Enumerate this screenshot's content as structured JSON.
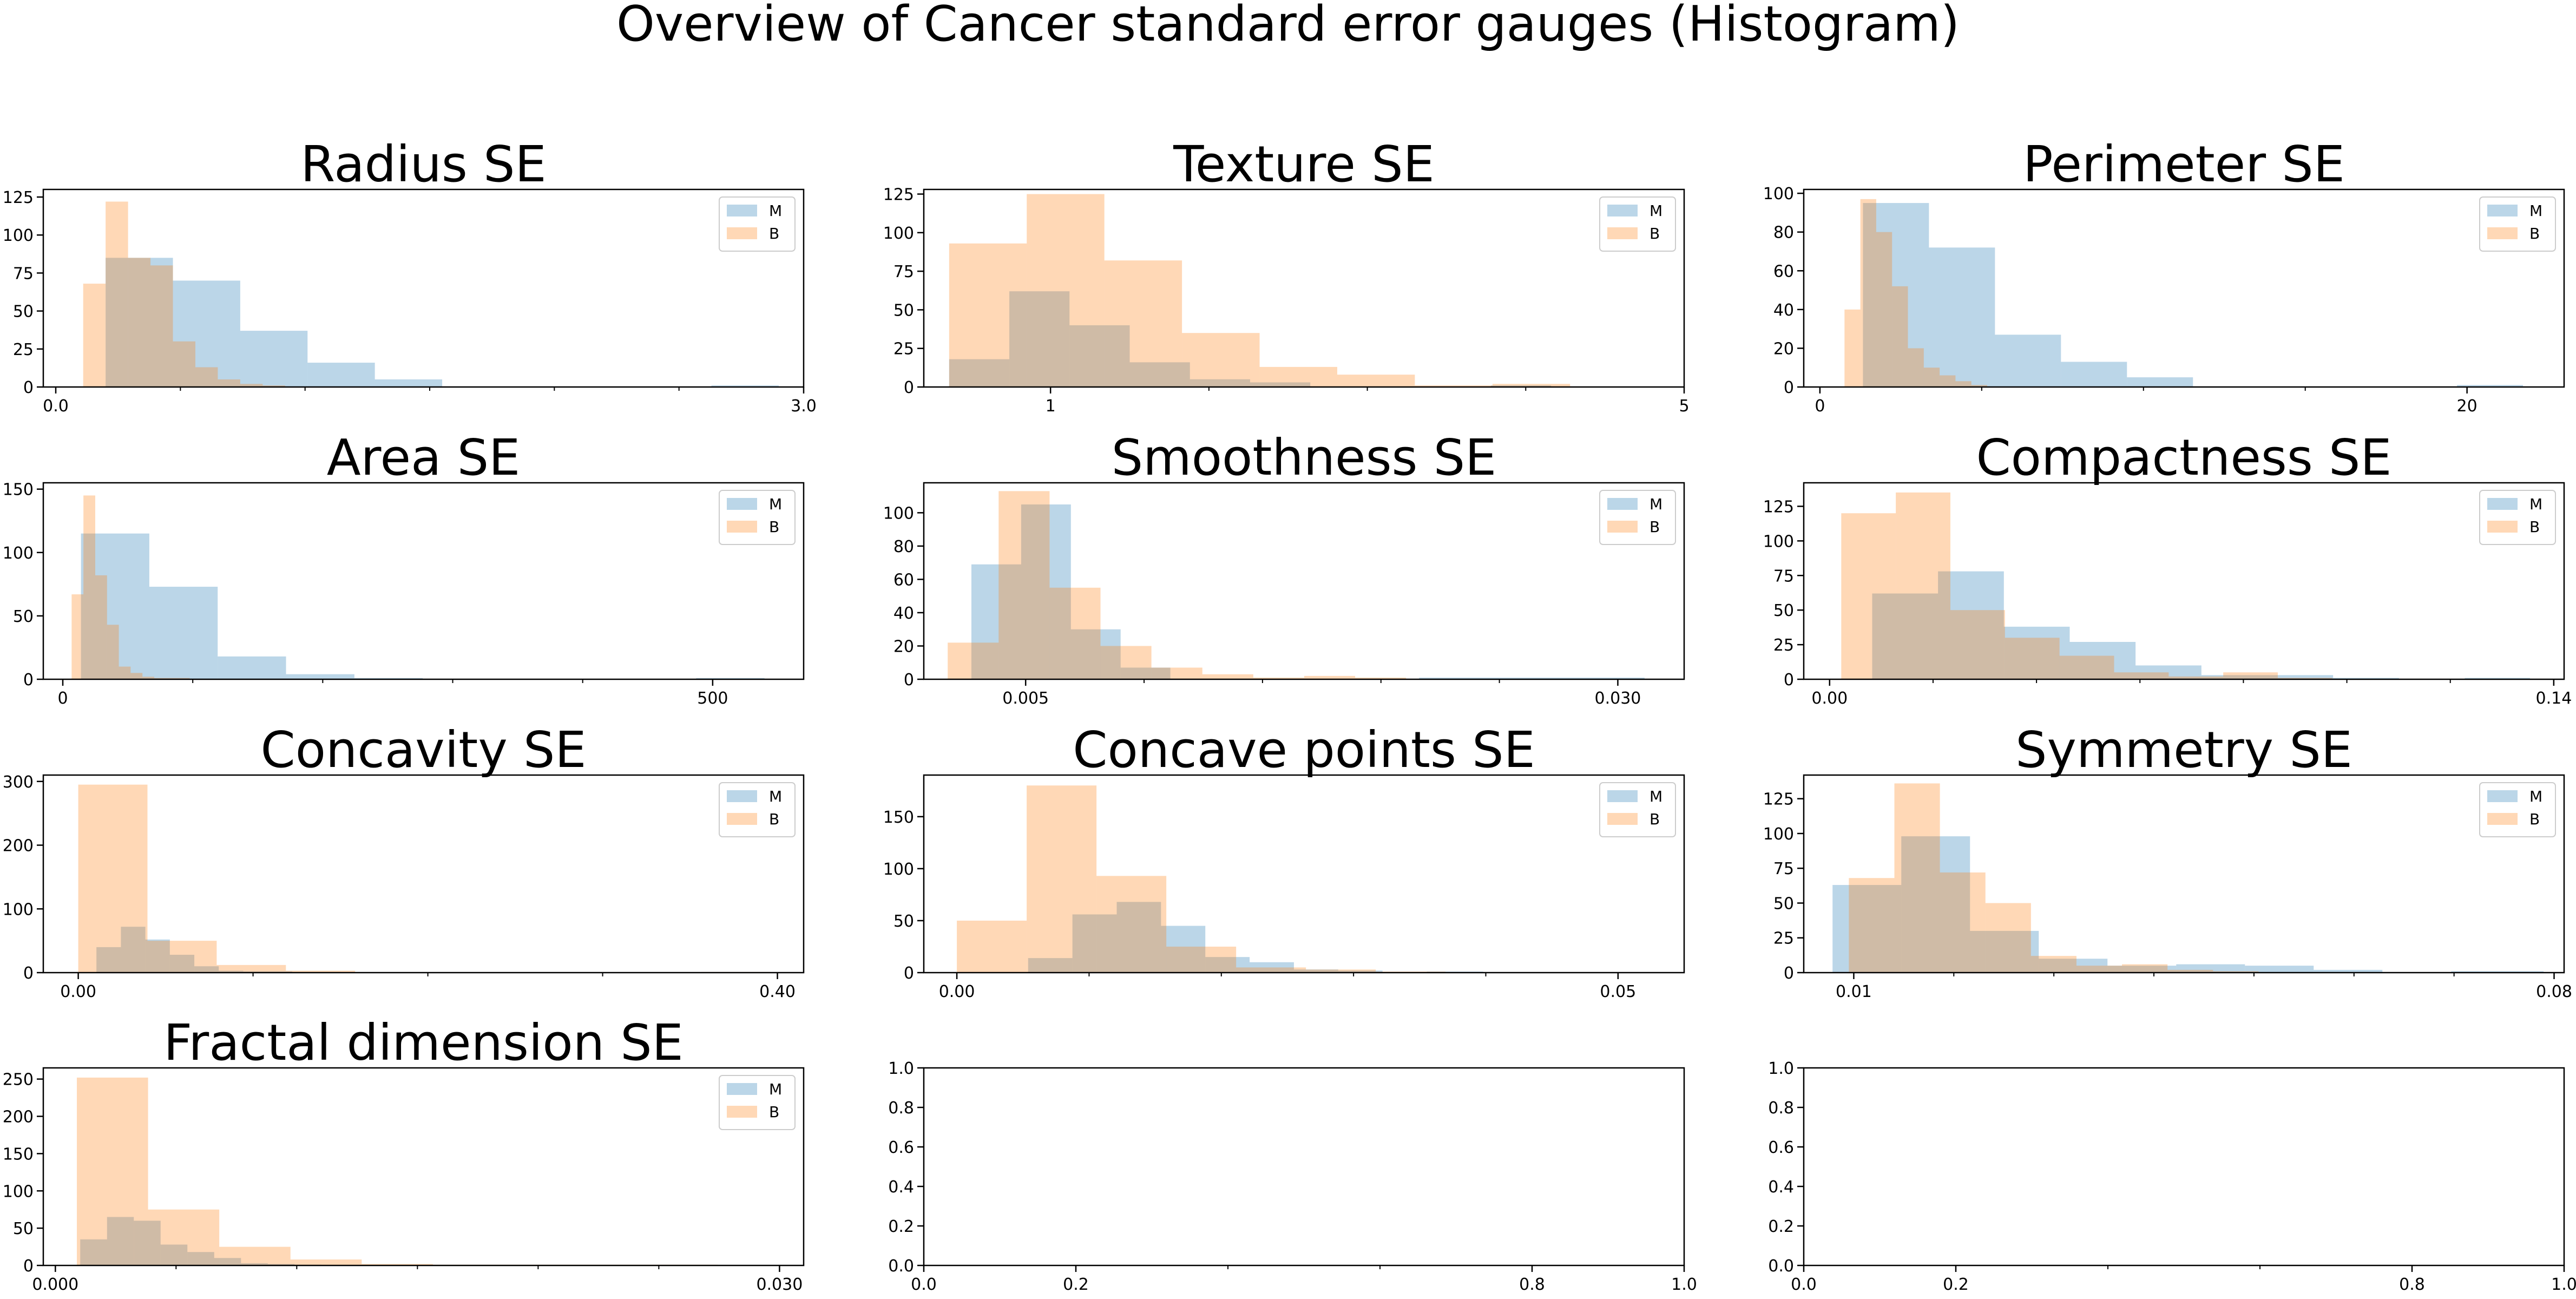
{
  "figure": {
    "title": "Overview of Cancer standard error gauges (Histogram)"
  },
  "style": {
    "colors": {
      "M": "#1f77b4",
      "B": "#ff7f0e"
    },
    "bar_alpha": 0.3,
    "legend_placement": "upper right"
  },
  "chart_data": [
    {
      "type": "histogram",
      "title": "Radius SE",
      "xlim": [
        -0.05,
        3.0
      ],
      "ylim": [
        0,
        130
      ],
      "xticks": [
        0.0,
        3.0
      ],
      "xtick_labels": [
        "0.0",
        "3.0"
      ],
      "minor_xticks": [
        0.5,
        1.0,
        1.5,
        2.0,
        2.5
      ],
      "yticks": [
        0,
        25,
        50,
        75,
        100,
        125
      ],
      "ytick_labels": [
        "0",
        "25",
        "50",
        "75",
        "100",
        "125"
      ],
      "legend": [
        "M",
        "B"
      ],
      "series": [
        {
          "name": "M",
          "edges": [
            0.2,
            0.47,
            0.74,
            1.01,
            1.28,
            1.55,
            1.82,
            2.09,
            2.36,
            2.63,
            2.9
          ],
          "values": [
            85,
            70,
            37,
            16,
            5,
            0,
            0,
            0,
            0,
            1
          ]
        },
        {
          "name": "B",
          "edges": [
            0.11,
            0.2,
            0.29,
            0.38,
            0.47,
            0.56,
            0.65,
            0.74,
            0.83,
            0.92,
            1.01
          ],
          "values": [
            68,
            122,
            85,
            80,
            30,
            13,
            5,
            2,
            1,
            0
          ]
        }
      ]
    },
    {
      "type": "histogram",
      "title": "Texture SE",
      "xlim": [
        0.2,
        5.0
      ],
      "ylim": [
        0,
        128
      ],
      "xticks": [
        1,
        5
      ],
      "xtick_labels": [
        "1",
        "5"
      ],
      "minor_xticks": [
        2,
        3,
        4
      ],
      "yticks": [
        0,
        25,
        50,
        75,
        100,
        125
      ],
      "ytick_labels": [
        "0",
        "25",
        "50",
        "75",
        "100",
        "125"
      ],
      "legend": [
        "M",
        "B"
      ],
      "series": [
        {
          "name": "M",
          "edges": [
            0.36,
            0.74,
            1.12,
            1.5,
            1.88,
            2.26,
            2.64,
            3.02,
            3.4,
            3.78,
            4.16
          ],
          "values": [
            18,
            62,
            40,
            16,
            5,
            3,
            0,
            0,
            0,
            1
          ]
        },
        {
          "name": "B",
          "edges": [
            0.36,
            0.85,
            1.34,
            1.83,
            2.32,
            2.81,
            3.3,
            3.79,
            4.28,
            4.77,
            4.9
          ],
          "values": [
            93,
            125,
            82,
            35,
            13,
            8,
            1,
            2,
            0,
            0
          ]
        }
      ]
    },
    {
      "type": "histogram",
      "title": "Perimeter SE",
      "xlim": [
        -0.5,
        23.0
      ],
      "ylim": [
        0,
        102
      ],
      "xticks": [
        0,
        20
      ],
      "xtick_labels": [
        "0",
        "20"
      ],
      "minor_xticks": [
        5,
        10,
        15
      ],
      "yticks": [
        0,
        20,
        40,
        60,
        80,
        100
      ],
      "ytick_labels": [
        "0",
        "20",
        "40",
        "60",
        "80",
        "100"
      ],
      "legend": [
        "M",
        "B"
      ],
      "series": [
        {
          "name": "M",
          "edges": [
            1.33,
            3.37,
            5.41,
            7.45,
            9.49,
            11.53,
            13.57,
            15.61,
            17.65,
            19.69,
            21.73
          ],
          "values": [
            95,
            72,
            27,
            13,
            5,
            0,
            0,
            0,
            0,
            1
          ]
        },
        {
          "name": "B",
          "edges": [
            0.76,
            1.25,
            1.74,
            2.23,
            2.72,
            3.21,
            3.7,
            4.19,
            4.68,
            5.17,
            5.66
          ],
          "values": [
            40,
            97,
            80,
            52,
            20,
            10,
            6,
            3,
            1,
            0
          ]
        }
      ]
    },
    {
      "type": "histogram",
      "title": "Area SE",
      "xlim": [
        -15,
        570
      ],
      "ylim": [
        0,
        155
      ],
      "xticks": [
        0,
        500
      ],
      "xtick_labels": [
        "0",
        "500"
      ],
      "minor_xticks": [
        100,
        200,
        300,
        400
      ],
      "yticks": [
        0,
        50,
        100,
        150
      ],
      "ytick_labels": [
        "0",
        "50",
        "100",
        "150"
      ],
      "legend": [
        "M",
        "B"
      ],
      "series": [
        {
          "name": "M",
          "edges": [
            13.99,
            66.58,
            119.17,
            171.76,
            224.35,
            276.94,
            329.53,
            382.12,
            434.71,
            487.3,
            539.89
          ],
          "values": [
            115,
            73,
            18,
            4,
            1,
            0,
            0,
            0,
            0,
            1
          ]
        },
        {
          "name": "B",
          "edges": [
            6.8,
            15.88,
            24.96,
            34.04,
            43.12,
            52.2,
            61.28,
            70.36,
            79.44,
            88.52,
            97.6
          ],
          "values": [
            67,
            145,
            82,
            43,
            10,
            5,
            2,
            1,
            1,
            1
          ]
        }
      ]
    },
    {
      "type": "histogram",
      "title": "Smoothness SE",
      "xlim": [
        0.0007,
        0.0328
      ],
      "ylim": [
        0,
        118
      ],
      "xticks": [
        0.005,
        0.03
      ],
      "xtick_labels": [
        "0.005",
        "0.030"
      ],
      "minor_xticks": [
        0.01,
        0.015,
        0.02,
        0.025
      ],
      "yticks": [
        0,
        20,
        40,
        60,
        80,
        100
      ],
      "ytick_labels": [
        "0",
        "20",
        "40",
        "60",
        "80",
        "100"
      ],
      "legend": [
        "M",
        "B"
      ],
      "series": [
        {
          "name": "M",
          "edges": [
            0.00271,
            0.00481,
            0.00691,
            0.00901,
            0.01111,
            0.01321,
            0.01531,
            0.01741,
            0.01951,
            0.02161,
            0.03113
          ],
          "values": [
            69,
            105,
            30,
            7,
            0,
            0,
            0,
            0,
            0,
            1
          ]
        },
        {
          "name": "B",
          "edges": [
            0.00171,
            0.00386,
            0.00601,
            0.00816,
            0.01031,
            0.01246,
            0.01461,
            0.01676,
            0.01891,
            0.02106,
            0.02321
          ],
          "values": [
            22,
            113,
            55,
            20,
            7,
            3,
            1,
            2,
            1,
            0
          ]
        }
      ]
    },
    {
      "type": "histogram",
      "title": "Compactness SE",
      "xlim": [
        -0.005,
        0.142
      ],
      "ylim": [
        0,
        142
      ],
      "xticks": [
        0.0,
        0.14
      ],
      "xtick_labels": [
        "0.00",
        "0.14"
      ],
      "minor_xticks": [
        0.02,
        0.04,
        0.06,
        0.08,
        0.1,
        0.12
      ],
      "yticks": [
        0,
        25,
        50,
        75,
        100,
        125
      ],
      "ytick_labels": [
        "0",
        "25",
        "50",
        "75",
        "100",
        "125"
      ],
      "legend": [
        "M",
        "B"
      ],
      "series": [
        {
          "name": "M",
          "edges": [
            0.00823,
            0.02096,
            0.03369,
            0.04642,
            0.05915,
            0.07188,
            0.08461,
            0.09734,
            0.11007,
            0.1228,
            0.1354
          ],
          "values": [
            62,
            78,
            38,
            27,
            10,
            3,
            3,
            1,
            0,
            1
          ]
        },
        {
          "name": "B",
          "edges": [
            0.00225,
            0.0128,
            0.02335,
            0.0339,
            0.04445,
            0.055,
            0.06555,
            0.0761,
            0.08665,
            0.0972,
            0.1077
          ],
          "values": [
            120,
            135,
            50,
            30,
            17,
            5,
            2,
            5,
            1,
            0
          ]
        }
      ]
    },
    {
      "type": "histogram",
      "title": "Concavity SE",
      "xlim": [
        -0.02,
        0.415
      ],
      "ylim": [
        0,
        310
      ],
      "xticks": [
        0.0,
        0.4
      ],
      "xtick_labels": [
        "0.00",
        "0.40"
      ],
      "minor_xticks": [
        0.1,
        0.2,
        0.3
      ],
      "yticks": [
        0,
        100,
        200,
        300
      ],
      "ytick_labels": [
        "0",
        "100",
        "200",
        "300"
      ],
      "legend": [
        "M",
        "B"
      ],
      "series": [
        {
          "name": "M",
          "edges": [
            0.0104,
            0.0244,
            0.0384,
            0.0524,
            0.0664,
            0.0804,
            0.0944,
            0.1084,
            0.1224,
            0.1364,
            0.1504
          ],
          "values": [
            40,
            72,
            52,
            28,
            10,
            3,
            2,
            2,
            1,
            1
          ]
        },
        {
          "name": "B",
          "edges": [
            0.0,
            0.0396,
            0.0792,
            0.1188,
            0.1584,
            0.198,
            0.2376,
            0.2772,
            0.3168,
            0.3564,
            0.396
          ],
          "values": [
            295,
            50,
            12,
            3,
            0,
            0,
            0,
            0,
            0,
            1
          ]
        }
      ]
    },
    {
      "type": "histogram",
      "title": "Concave points SE",
      "xlim": [
        -0.0025,
        0.055
      ],
      "ylim": [
        0,
        190
      ],
      "xticks": [
        0.0,
        0.05
      ],
      "xtick_labels": [
        "0.00",
        "0.05"
      ],
      "minor_xticks": [
        0.01,
        0.02,
        0.03,
        0.04
      ],
      "yticks": [
        0,
        50,
        100,
        150
      ],
      "ytick_labels": [
        "0",
        "50",
        "100",
        "150"
      ],
      "legend": [
        "M",
        "B"
      ],
      "series": [
        {
          "name": "M",
          "edges": [
            0.00539,
            0.00874,
            0.01209,
            0.01544,
            0.01879,
            0.02214,
            0.02549,
            0.02884,
            0.03219,
            0.03554,
            0.0398
          ],
          "values": [
            14,
            56,
            68,
            45,
            15,
            10,
            3,
            2,
            0,
            1
          ]
        },
        {
          "name": "B",
          "edges": [
            0.0,
            0.00528,
            0.01056,
            0.01584,
            0.02112,
            0.0264,
            0.03168,
            0.03696,
            0.04224,
            0.04752,
            0.0528
          ],
          "values": [
            50,
            180,
            93,
            25,
            5,
            3,
            1,
            0,
            0,
            0
          ]
        }
      ]
    },
    {
      "type": "histogram",
      "title": "Symmetry SE",
      "xlim": [
        0.005,
        0.081
      ],
      "ylim": [
        0,
        142
      ],
      "xticks": [
        0.01,
        0.08
      ],
      "xtick_labels": [
        "0.01",
        "0.08"
      ],
      "minor_xticks": [
        0.02,
        0.03,
        0.04,
        0.05,
        0.06,
        0.07
      ],
      "yticks": [
        0,
        25,
        50,
        75,
        100,
        125
      ],
      "ytick_labels": [
        "0",
        "25",
        "50",
        "75",
        "100",
        "125"
      ],
      "legend": [
        "M",
        "B"
      ],
      "series": [
        {
          "name": "M",
          "edges": [
            0.00788,
            0.01475,
            0.02162,
            0.02849,
            0.03536,
            0.04223,
            0.0491,
            0.05597,
            0.06284,
            0.06971,
            0.07895
          ],
          "values": [
            63,
            98,
            30,
            10,
            5,
            6,
            5,
            2,
            0,
            1
          ]
        },
        {
          "name": "B",
          "edges": [
            0.00951,
            0.01406,
            0.01861,
            0.02316,
            0.02771,
            0.03226,
            0.03681,
            0.04136,
            0.04591,
            0.05046,
            0.05501
          ],
          "values": [
            68,
            136,
            72,
            50,
            12,
            5,
            6,
            2,
            1,
            0
          ]
        }
      ]
    },
    {
      "type": "histogram",
      "title": "Fractal dimension SE",
      "xlim": [
        -0.0005,
        0.031
      ],
      "ylim": [
        0,
        265
      ],
      "xticks": [
        0.0,
        0.03
      ],
      "xtick_labels": [
        "0.000",
        "0.030"
      ],
      "minor_xticks": [
        0.005,
        0.01,
        0.015,
        0.02,
        0.025
      ],
      "yticks": [
        0,
        50,
        100,
        150,
        200,
        250
      ],
      "ytick_labels": [
        "0",
        "50",
        "100",
        "150",
        "200",
        "250"
      ],
      "legend": [
        "M",
        "B"
      ],
      "series": [
        {
          "name": "M",
          "edges": [
            0.00103,
            0.00214,
            0.00325,
            0.00436,
            0.00547,
            0.00658,
            0.00769,
            0.0088,
            0.00991,
            0.01102,
            0.01213
          ],
          "values": [
            35,
            65,
            60,
            28,
            18,
            10,
            3,
            2,
            1,
            0
          ]
        },
        {
          "name": "B",
          "edges": [
            0.00089,
            0.00384,
            0.00679,
            0.00974,
            0.01269,
            0.01564,
            0.01859,
            0.02154,
            0.02449,
            0.02744,
            0.02984
          ],
          "values": [
            252,
            75,
            25,
            8,
            2,
            1,
            1,
            1,
            1,
            0
          ]
        }
      ]
    },
    {
      "type": "empty",
      "title": "",
      "xlim": [
        0,
        1
      ],
      "ylim": [
        0,
        1
      ],
      "xticks": [
        0.0,
        0.2,
        0.8,
        1.0
      ],
      "xtick_labels": [
        "0.0",
        "0.2",
        "0.8",
        "1.0"
      ],
      "minor_xticks": [
        0.4,
        0.6
      ],
      "yticks": [
        0.0,
        0.2,
        0.4,
        0.6,
        0.8,
        1.0
      ],
      "ytick_labels": [
        "0.0",
        "0.2",
        "0.4",
        "0.6",
        "0.8",
        "1.0"
      ],
      "legend": [],
      "series": []
    },
    {
      "type": "empty",
      "title": "",
      "xlim": [
        0,
        1
      ],
      "ylim": [
        0,
        1
      ],
      "xticks": [
        0.0,
        0.2,
        0.8,
        1.0
      ],
      "xtick_labels": [
        "0.0",
        "0.2",
        "0.8",
        "1.0"
      ],
      "minor_xticks": [
        0.4,
        0.6
      ],
      "yticks": [
        0.0,
        0.2,
        0.4,
        0.6,
        0.8,
        1.0
      ],
      "ytick_labels": [
        "0.0",
        "0.2",
        "0.4",
        "0.6",
        "0.8",
        "1.0"
      ],
      "legend": [],
      "series": []
    }
  ]
}
